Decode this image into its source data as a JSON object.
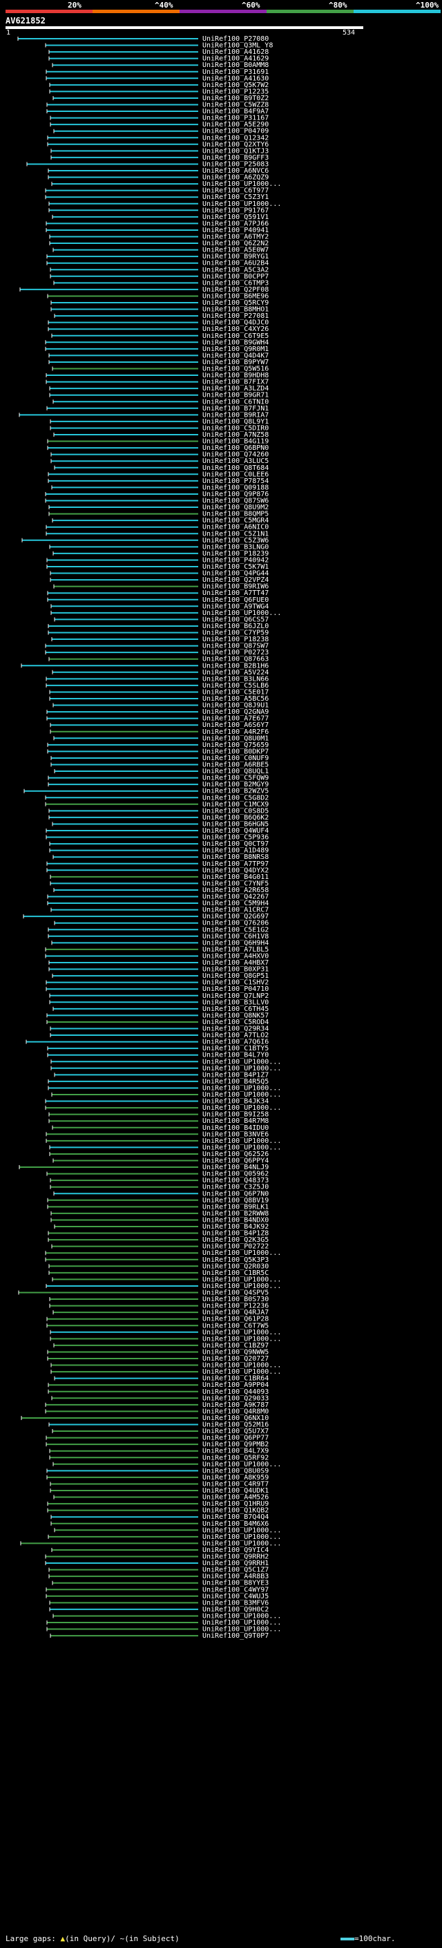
{
  "header": {
    "percent_labels": [
      "20%",
      "^40%",
      "^60%",
      "^80%",
      "^100%"
    ],
    "colors": [
      "#e53935",
      "#ef6c00",
      "#8e24aa",
      "#43a047",
      "#26c6da"
    ],
    "query_name": "AV621852",
    "query_start": "1",
    "query_end": "534"
  },
  "footer": {
    "large_gaps": "Large gaps:",
    "mark_query": "▲",
    "in_query": "(in Query)/",
    "mark_subject": "~",
    "in_subject": "(in Subject)",
    "scale": "=100char."
  },
  "chart_data": {
    "type": "alignment-overview",
    "title": "AV621852",
    "x_range": [
      1,
      534
    ],
    "color_legend": [
      {
        "label": "20%",
        "color": "#e53935"
      },
      {
        "label": "40%",
        "color": "#ef6c00"
      },
      {
        "label": "60%",
        "color": "#8e24aa"
      },
      {
        "label": "80%",
        "color": "#43a047"
      },
      {
        "label": "100%",
        "color": "#26c6da"
      }
    ],
    "hits": [
      "UniRef100_P27080",
      "UniRef100_Q3ML Y8",
      "UniRef100_A41628",
      "UniRef100_A41629",
      "UniRef100_B0AMM8",
      "UniRef100_P31691",
      "UniRef100_A41630",
      "UniRef100_Q5K7W2",
      "UniRef100_P12235",
      "UniRef100_B9T0Z2",
      "UniRef100_C5WZZ8",
      "UniRef100_B4F9A7",
      "UniRef100_P31167",
      "UniRef100_A5E290",
      "UniRef100_P04709",
      "UniRef100_Q12342",
      "UniRef100_Q2XTY6",
      "UniRef100_Q1KTJ3",
      "UniRef100_B9GFF3",
      "UniRef100_P25083",
      "UniRef100_A6NVC6",
      "UniRef100_A6ZQZ9",
      "UniRef100_UP1000...",
      "UniRef100_C6T977",
      "UniRef100_C5Z3Y1",
      "UniRef100_UP1000...",
      "UniRef100_P91767",
      "UniRef100_Q591V1",
      "UniRef100_A7PJ66",
      "UniRef100_P40941",
      "UniRef100_A6TMY2",
      "UniRef100_Q6Z2N2",
      "UniRef100_A5E0W7",
      "UniRef100_B9RYG1",
      "UniRef100_A6U2B4",
      "UniRef100_A5C3A2",
      "UniRef100_B0CPP7",
      "UniRef100_C6TMP3",
      "UniRef100_Q2PF08",
      "UniRef100_B6ME96",
      "UniRef100_Q5RCY9",
      "UniRef100_B8MHO1",
      "UniRef100_P27081",
      "UniRef100_Q4DJC0",
      "UniRef100_C4XY26",
      "UniRef100_C6T9E5",
      "UniRef100_B9GWH4",
      "UniRef100_Q9R0M1",
      "UniRef100_Q4D4K7",
      "UniRef100_B9PYW7",
      "UniRef100_Q5W516",
      "UniRef100_B9HDH8",
      "UniRef100_B7FIX7",
      "UniRef100_A3LZD4",
      "UniRef100_B9GR71",
      "UniRef100_C6TNI0",
      "UniRef100_B7FJN1",
      "UniRef100_B9RIA7",
      "UniRef100_Q8L9Y1",
      "UniRef100_C5DIR0",
      "UniRef100_A7NZ58",
      "UniRef100_B4G119",
      "UniRef100_Q6BPN0",
      "UniRef100_Q74260",
      "UniRef100_A3LUC5",
      "UniRef100_Q8T684",
      "UniRef100_C0LEE6",
      "UniRef100_P78754",
      "UniRef100_Q09188",
      "UniRef100_Q9P876",
      "UniRef100_Q87SW6",
      "UniRef100_Q8U9M2",
      "UniRef100_B8QMP5",
      "UniRef100_C5MGR4",
      "UniRef100_A6NIC0",
      "UniRef100_C5Z1N1",
      "UniRef100_C5Z3W6",
      "UniRef100_B3LNG0",
      "UniRef100_P18239",
      "UniRef100_P40942",
      "UniRef100_C5K7W1",
      "UniRef100_Q4PG44",
      "UniRef100_Q2VPZ4",
      "UniRef100_B9RIW6",
      "UniRef100_A7TT47",
      "UniRef100_Q6FUE0",
      "UniRef100_A9TWG4",
      "UniRef100_UP1000...",
      "UniRef100_Q6CS57",
      "UniRef100_B6JZL0",
      "UniRef100_C7YP59",
      "UniRef100_P18238",
      "UniRef100_Q87SW7",
      "UniRef100_P02723",
      "UniRef100_Q87663",
      "UniRef100_B2B1H6",
      "UniRef100_A5V224",
      "UniRef100_B3LN66",
      "UniRef100_C5SLB6",
      "UniRef100_C5E017",
      "UniRef100_A5BC56",
      "UniRef100_Q8J9U1",
      "UniRef100_Q2GNA9",
      "UniRef100_A7E677",
      "UniRef100_A6S6Y7",
      "UniRef100_A4R2F6",
      "UniRef100_Q8U0M1",
      "UniRef100_Q75659",
      "UniRef100_B0DKP7",
      "UniRef100_C0NUF9",
      "UniRef100_A6RBE5",
      "UniRef100_Q8UQL1",
      "UniRef100_C5FQW9",
      "UniRef100_B2MGY9",
      "UniRef100_B2WZV5",
      "UniRef100_C5G8D2",
      "UniRef100_C1MCX9",
      "UniRef100_C0S8D5",
      "UniRef100_B6Q6K2",
      "UniRef100_B6HGN5",
      "UniRef100_Q4WUF4",
      "UniRef100_C5P936",
      "UniRef100_Q0CT97",
      "UniRef100_A1D489",
      "UniRef100_B8NRS8",
      "UniRef100_A7TP97",
      "UniRef100_Q4DYX2",
      "UniRef100_B4G011",
      "UniRef100_C7YNF5",
      "UniRef100_A2R658",
      "UniRef100_Q42267",
      "UniRef100_C5M9H4",
      "UniRef100_A1CRC7",
      "UniRef100_Q2G697",
      "UniRef100_Q76206",
      "UniRef100_C5E1G2",
      "UniRef100_C6H1V8",
      "UniRef100_Q6H9H4",
      "UniRef100_A7LBL5",
      "UniRef100_A4HXV0",
      "UniRef100_A4HBX7",
      "UniRef100_B0XP31",
      "UniRef100_Q8GP51",
      "UniRef100_C1SHV2",
      "UniRef100_P04710",
      "UniRef100_Q7LNP2",
      "UniRef100_B3LLV0",
      "UniRef100_C6TH45",
      "UniRef100_Q8NK57",
      "UniRef100_C5ROD4",
      "UniRef100_Q29R34",
      "UniRef100_A7TLO2",
      "UniRef100_A7Q6I6",
      "UniRef100_C1BTY5",
      "UniRef100_B4L7Y0",
      "UniRef100_UP1000...",
      "UniRef100_UP1000...",
      "UniRef100_B4P1Z7",
      "UniRef100_B4R5Q5",
      "UniRef100_UP1000...",
      "UniRef100_UP1000...",
      "UniRef100_B4JK34",
      "UniRef100_UP1000...",
      "UniRef100_B9I258",
      "UniRef100_B4R7M8",
      "UniRef100_B4IDU0",
      "UniRef100_B3NVE6",
      "UniRef100_UP1000...",
      "UniRef100_UP1000...",
      "UniRef100_Q62526",
      "UniRef100_Q6PPY4",
      "UniRef100_B4NLJ9",
      "UniRef100_Q05962",
      "UniRef100_Q48373",
      "UniRef100_C3Z5J0",
      "UniRef100_Q6P7N0",
      "UniRef100_Q8BV19",
      "UniRef100_B9RLK1",
      "UniRef100_B2RWW8",
      "UniRef100_B4NDX0",
      "UniRef100_B4JK92",
      "UniRef100_B4P1Z8",
      "UniRef100_Q2K3G5",
      "UniRef100_P02722",
      "UniRef100_UP1000...",
      "UniRef100_Q5K3P3",
      "UniRef100_Q2R030",
      "UniRef100_C1BR5C",
      "UniRef100_UP1000...",
      "UniRef100_UP1000...",
      "UniRef100_Q4SPV5",
      "UniRef100_B0S730",
      "UniRef100_P12236",
      "UniRef100_Q4RJA7",
      "UniRef100_Q61P28",
      "UniRef100_C6T7W5",
      "UniRef100_UP1000...",
      "UniRef100_UP1000...",
      "UniRef100_C1BZ97",
      "UniRef100_Q9NWW5",
      "UniRef100_Q20727",
      "UniRef100_UP1000...",
      "UniRef100_UP1000...",
      "UniRef100_C1BR64",
      "UniRef100_A9PP04",
      "UniRef100_Q44093",
      "UniRef100_Q29033",
      "UniRef100_A9K787",
      "UniRef100_Q4R8M0",
      "UniRef100_Q6NX10",
      "UniRef100_Q52M16",
      "UniRef100_Q5U7X7",
      "UniRef100_Q6PP77",
      "UniRef100_Q9PMB2",
      "UniRef100_B4L7X9",
      "UniRef100_Q5RF92",
      "UniRef100_UP1000...",
      "UniRef100_Q8U0S9",
      "UniRef100_A8K959",
      "UniRef100_C4R9T7",
      "UniRef100_Q4UDK1",
      "UniRef100_A4M526",
      "UniRef100_Q1HRU9",
      "UniRef100_Q1KQB2",
      "UniRef100_B7Q4Q4",
      "UniRef100_B4M6X6",
      "UniRef100_UP1000...",
      "UniRef100_UP1000...",
      "UniRef100_UP1000...",
      "UniRef100_Q9YIC4",
      "UniRef100_Q9RRH2",
      "UniRef100_Q9RRH1",
      "UniRef100_Q5C1Z7",
      "UniRef100_A4R8B3",
      "UniRef100_B8YYE3",
      "UniRef100_C4WY97",
      "UniRef100_C4WUJ5",
      "UniRef100_B3MFV6",
      "UniRef100_Q9H0C2",
      "UniRef100_UP1000...",
      "UniRef100_UP1000...",
      "UniRef100_UP1000...",
      "UniRef100_Q9T0P7"
    ]
  }
}
